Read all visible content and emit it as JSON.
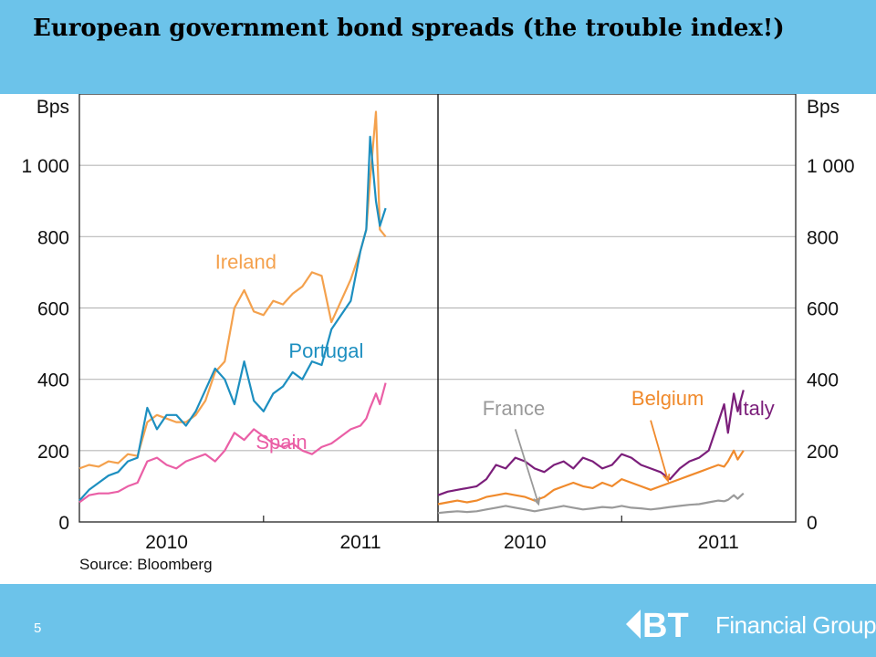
{
  "slide": {
    "title": "European government bond spreads (the trouble index!)",
    "page_number": "5",
    "logo_text": "Financial Group",
    "logo_mark": "BT"
  },
  "colors": {
    "band": "#6cc3ea",
    "grid": "#b9b9b9",
    "Ireland": "#f4a14d",
    "Portugal": "#1d8fc0",
    "Spain": "#ea5fa6",
    "Italy": "#7b1e7a",
    "Belgium": "#f08a2c",
    "France": "#9a9a9a"
  },
  "chart_data": [
    {
      "type": "line",
      "title": "",
      "ylabel": "Bps",
      "yticks": [
        0,
        200,
        400,
        600,
        800,
        1000
      ],
      "ytick_labels": [
        "0",
        "200",
        "400",
        "600",
        "800",
        "1 000"
      ],
      "ylim": [
        0,
        1200
      ],
      "xlim": [
        2009.55,
        2011.4
      ],
      "xticks": [
        2010,
        2011
      ],
      "xtick_labels": [
        "2010",
        "2011"
      ],
      "source": "Source: Bloomberg",
      "grid": true,
      "series": [
        {
          "name": "Ireland",
          "label_pos": [
            2010.25,
            710
          ],
          "x": [
            2009.55,
            2009.6,
            2009.65,
            2009.7,
            2009.75,
            2009.8,
            2009.85,
            2009.9,
            2009.95,
            2010.0,
            2010.05,
            2010.1,
            2010.15,
            2010.2,
            2010.25,
            2010.3,
            2010.35,
            2010.4,
            2010.45,
            2010.5,
            2010.55,
            2010.6,
            2010.65,
            2010.7,
            2010.75,
            2010.8,
            2010.85,
            2010.9,
            2010.95,
            2011.0,
            2011.03,
            2011.05,
            2011.08,
            2011.1,
            2011.13
          ],
          "y": [
            150,
            160,
            155,
            170,
            165,
            190,
            185,
            280,
            300,
            290,
            280,
            280,
            300,
            340,
            420,
            450,
            600,
            650,
            590,
            580,
            620,
            610,
            640,
            660,
            700,
            690,
            560,
            620,
            680,
            760,
            820,
            960,
            1150,
            820,
            800
          ]
        },
        {
          "name": "Portugal",
          "label_pos": [
            2010.63,
            460
          ],
          "x": [
            2009.55,
            2009.6,
            2009.65,
            2009.7,
            2009.75,
            2009.8,
            2009.85,
            2009.9,
            2009.95,
            2010.0,
            2010.05,
            2010.1,
            2010.15,
            2010.2,
            2010.25,
            2010.3,
            2010.35,
            2010.4,
            2010.45,
            2010.5,
            2010.55,
            2010.6,
            2010.65,
            2010.7,
            2010.75,
            2010.8,
            2010.85,
            2010.9,
            2010.95,
            2011.0,
            2011.03,
            2011.05,
            2011.08,
            2011.1,
            2011.13
          ],
          "y": [
            60,
            90,
            110,
            130,
            140,
            170,
            180,
            320,
            260,
            300,
            300,
            270,
            310,
            370,
            430,
            400,
            330,
            450,
            340,
            310,
            360,
            380,
            420,
            400,
            450,
            440,
            540,
            580,
            620,
            760,
            820,
            1080,
            900,
            830,
            880
          ]
        },
        {
          "name": "Spain",
          "label_pos": [
            2010.46,
            205
          ],
          "x": [
            2009.55,
            2009.6,
            2009.65,
            2009.7,
            2009.75,
            2009.8,
            2009.85,
            2009.9,
            2009.95,
            2010.0,
            2010.05,
            2010.1,
            2010.15,
            2010.2,
            2010.25,
            2010.3,
            2010.35,
            2010.4,
            2010.45,
            2010.5,
            2010.55,
            2010.6,
            2010.65,
            2010.7,
            2010.75,
            2010.8,
            2010.85,
            2010.9,
            2010.95,
            2011.0,
            2011.03,
            2011.05,
            2011.08,
            2011.1,
            2011.13
          ],
          "y": [
            55,
            75,
            80,
            80,
            85,
            100,
            110,
            170,
            180,
            160,
            150,
            170,
            180,
            190,
            170,
            200,
            250,
            230,
            260,
            240,
            220,
            210,
            220,
            200,
            190,
            210,
            220,
            240,
            260,
            270,
            290,
            320,
            360,
            330,
            390
          ]
        }
      ]
    },
    {
      "type": "line",
      "title": "",
      "ylabel": "Bps",
      "yticks": [
        0,
        200,
        400,
        600,
        800,
        1000
      ],
      "ytick_labels": [
        "0",
        "200",
        "400",
        "600",
        "800",
        "1 000"
      ],
      "ylim": [
        0,
        1200
      ],
      "xlim": [
        2009.55,
        2011.4
      ],
      "xticks": [
        2010,
        2011
      ],
      "xtick_labels": [
        "2010",
        "2011"
      ],
      "grid": true,
      "series": [
        {
          "name": "Italy",
          "label_pos": [
            2011.1,
            300
          ],
          "x": [
            2009.55,
            2009.6,
            2009.65,
            2009.7,
            2009.75,
            2009.8,
            2009.85,
            2009.9,
            2009.95,
            2010.0,
            2010.05,
            2010.1,
            2010.15,
            2010.2,
            2010.25,
            2010.3,
            2010.35,
            2010.4,
            2010.45,
            2010.5,
            2010.55,
            2010.6,
            2010.65,
            2010.7,
            2010.75,
            2010.8,
            2010.85,
            2010.9,
            2010.95,
            2011.0,
            2011.03,
            2011.05,
            2011.08,
            2011.1,
            2011.13
          ],
          "y": [
            75,
            85,
            90,
            95,
            100,
            120,
            160,
            150,
            180,
            170,
            150,
            140,
            160,
            170,
            150,
            180,
            170,
            150,
            160,
            190,
            180,
            160,
            150,
            140,
            120,
            150,
            170,
            180,
            200,
            280,
            330,
            250,
            360,
            310,
            370
          ]
        },
        {
          "name": "Belgium",
          "label_pos": [
            2010.55,
            328
          ],
          "x": [
            2009.55,
            2009.6,
            2009.65,
            2009.7,
            2009.75,
            2009.8,
            2009.85,
            2009.9,
            2009.95,
            2010.0,
            2010.05,
            2010.1,
            2010.15,
            2010.2,
            2010.25,
            2010.3,
            2010.35,
            2010.4,
            2010.45,
            2010.5,
            2010.55,
            2010.6,
            2010.65,
            2010.7,
            2010.75,
            2010.8,
            2010.85,
            2010.9,
            2010.95,
            2011.0,
            2011.03,
            2011.05,
            2011.08,
            2011.1,
            2011.13
          ],
          "y": [
            50,
            55,
            60,
            55,
            60,
            70,
            75,
            80,
            75,
            70,
            60,
            70,
            90,
            100,
            110,
            100,
            95,
            110,
            100,
            120,
            110,
            100,
            90,
            100,
            110,
            120,
            130,
            140,
            150,
            160,
            155,
            170,
            200,
            175,
            200
          ]
        },
        {
          "name": "France",
          "label_pos": [
            2009.78,
            300
          ],
          "x": [
            2009.55,
            2009.6,
            2009.65,
            2009.7,
            2009.75,
            2009.8,
            2009.85,
            2009.9,
            2009.95,
            2010.0,
            2010.05,
            2010.1,
            2010.15,
            2010.2,
            2010.25,
            2010.3,
            2010.35,
            2010.4,
            2010.45,
            2010.5,
            2010.55,
            2010.6,
            2010.65,
            2010.7,
            2010.75,
            2010.8,
            2010.85,
            2010.9,
            2010.95,
            2011.0,
            2011.03,
            2011.05,
            2011.08,
            2011.1,
            2011.13
          ],
          "y": [
            25,
            28,
            30,
            28,
            30,
            35,
            40,
            45,
            40,
            35,
            30,
            35,
            40,
            45,
            40,
            35,
            38,
            42,
            40,
            45,
            40,
            38,
            35,
            38,
            42,
            45,
            48,
            50,
            55,
            60,
            58,
            62,
            75,
            65,
            80
          ]
        }
      ]
    }
  ]
}
